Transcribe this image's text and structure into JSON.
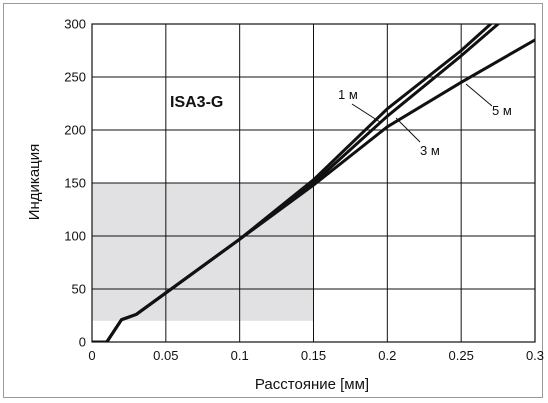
{
  "chart_data": {
    "type": "line",
    "title": "",
    "annotation": "ISA3-G",
    "xlabel": "Расстояние [мм]",
    "ylabel": "Индикация",
    "xlim": [
      0,
      0.3
    ],
    "ylim": [
      0,
      300
    ],
    "xticks": [
      0,
      0.05,
      0.1,
      0.15,
      0.2,
      0.25,
      0.3
    ],
    "xtick_labels": [
      "0",
      "0.05",
      "0.1",
      "0.15",
      "0.2",
      "0.25",
      "0.3"
    ],
    "yticks": [
      0,
      50,
      100,
      150,
      200,
      250,
      300
    ],
    "ytick_labels": [
      "0",
      "50",
      "100",
      "150",
      "200",
      "250",
      "300"
    ],
    "grid": true,
    "shaded_region": {
      "x": [
        0,
        0.15
      ],
      "y": [
        20,
        150
      ]
    },
    "series": [
      {
        "name": "1 м",
        "x": [
          0,
          0.01,
          0.02,
          0.03,
          0.1,
          0.15,
          0.2,
          0.25,
          0.27
        ],
        "y": [
          0,
          0,
          21,
          26,
          97,
          153,
          220,
          275,
          300
        ]
      },
      {
        "name": "3 м",
        "x": [
          0,
          0.01,
          0.02,
          0.03,
          0.1,
          0.15,
          0.2,
          0.25,
          0.275
        ],
        "y": [
          0,
          0,
          21,
          26,
          97,
          150,
          213,
          270,
          300
        ]
      },
      {
        "name": "5 м",
        "x": [
          0,
          0.01,
          0.02,
          0.03,
          0.1,
          0.15,
          0.2,
          0.25,
          0.3
        ],
        "y": [
          0,
          0,
          21,
          26,
          97,
          148,
          203,
          245,
          285
        ]
      }
    ]
  }
}
